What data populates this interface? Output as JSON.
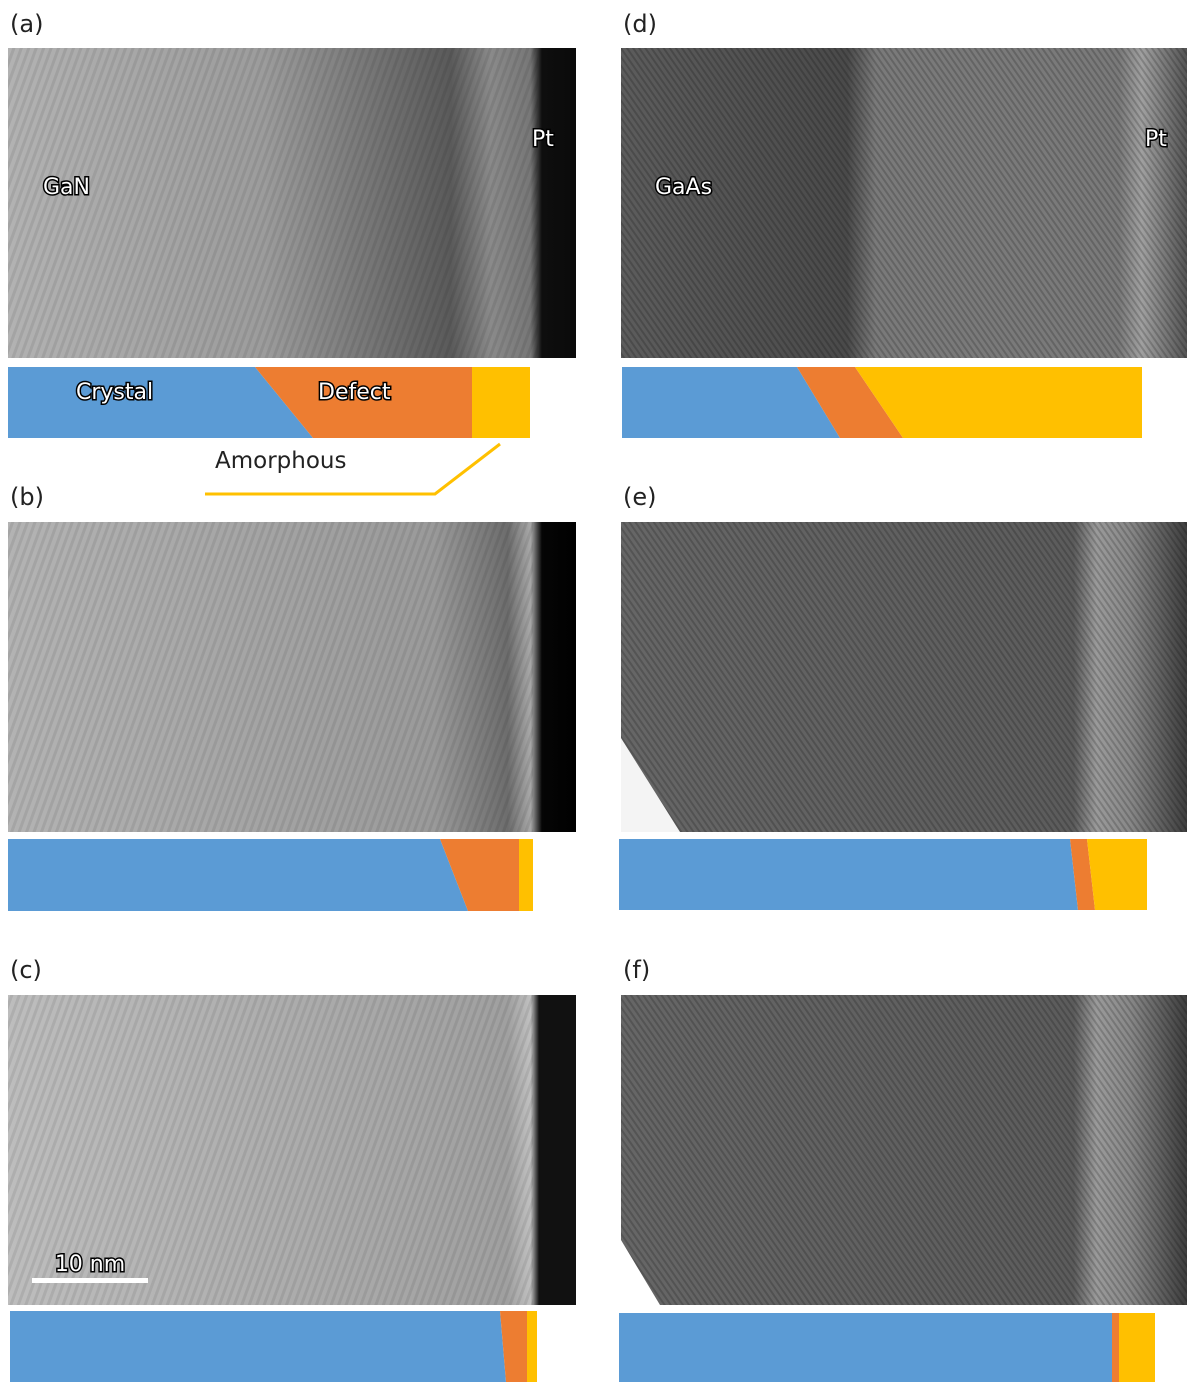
{
  "panels": [
    {
      "label": "(a)",
      "material": "GaN",
      "cap": "Pt"
    },
    {
      "label": "(b)"
    },
    {
      "label": "(c)",
      "scale_bar": "10 nm"
    },
    {
      "label": "(d)",
      "material": "GaAs",
      "cap": "Pt"
    },
    {
      "label": "(e)"
    },
    {
      "label": "(f)"
    }
  ],
  "legend": {
    "crystal": "Crystal",
    "defect": "Defect",
    "amorphous": "Amorphous"
  }
}
